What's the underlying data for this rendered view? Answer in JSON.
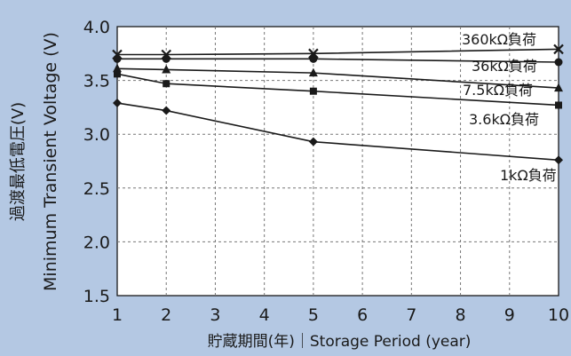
{
  "chart_data": {
    "type": "line",
    "xlabel": "貯蔵期間(年)｜Storage Period (year)",
    "ylabel_ja": "過渡最低電圧(V)",
    "ylabel_en": "Minimum Transient Voltage (V)",
    "xlim": [
      1,
      10
    ],
    "ylim": [
      1.5,
      4.0
    ],
    "xticks": [
      "1",
      "2",
      "3",
      "4",
      "5",
      "6",
      "7",
      "8",
      "9",
      "10"
    ],
    "yticks": [
      "1.5",
      "2.0",
      "2.5",
      "3.0",
      "3.5",
      "4.0"
    ],
    "grid": true,
    "series": [
      {
        "name": "360kΩ負荷",
        "marker": "x",
        "x": [
          1,
          2,
          5,
          10
        ],
        "y": [
          3.74,
          3.74,
          3.75,
          3.79
        ]
      },
      {
        "name": "36kΩ負荷",
        "marker": "circle",
        "x": [
          1,
          2,
          5,
          10
        ],
        "y": [
          3.7,
          3.7,
          3.7,
          3.67
        ]
      },
      {
        "name": "7.5kΩ負荷",
        "marker": "triangle",
        "x": [
          1,
          2,
          5,
          10
        ],
        "y": [
          3.61,
          3.6,
          3.57,
          3.43
        ]
      },
      {
        "name": "3.6kΩ負荷",
        "marker": "square",
        "x": [
          1,
          2,
          5,
          10
        ],
        "y": [
          3.56,
          3.47,
          3.4,
          3.27
        ]
      },
      {
        "name": "1kΩ負荷",
        "marker": "diamond",
        "x": [
          1,
          2,
          5,
          10
        ],
        "y": [
          3.29,
          3.22,
          2.93,
          2.76
        ]
      }
    ]
  }
}
